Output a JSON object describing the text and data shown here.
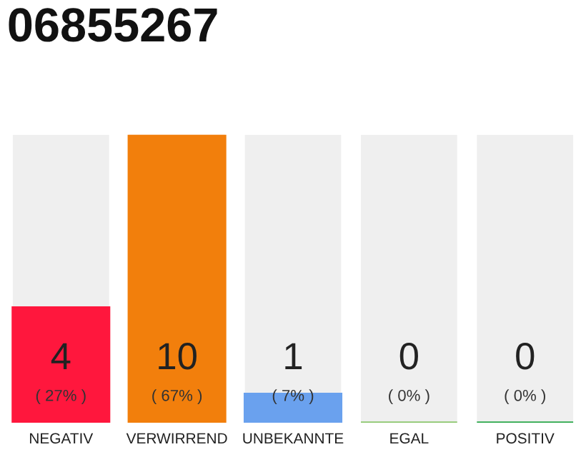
{
  "chart_data": {
    "type": "bar",
    "title": "06855267",
    "categories": [
      "NEGATIV",
      "VERWIRREND",
      "UNBEKANNTE",
      "EGAL",
      "POSITIV"
    ],
    "values": [
      4,
      10,
      1,
      0,
      0
    ],
    "colors": [
      "#ff173d",
      "#f27f0c",
      "#6aa1ee",
      "#8cc66d",
      "#2aa84a"
    ],
    "value_labels": [
      "4\n( 27% )",
      "10\n( 67% )",
      "1\n( 7% )",
      "0\n( 0% )",
      "0\n( 0% )"
    ],
    "ylim": [
      0,
      10
    ],
    "tick_labels": "x",
    "grid": false,
    "legend": false
  }
}
